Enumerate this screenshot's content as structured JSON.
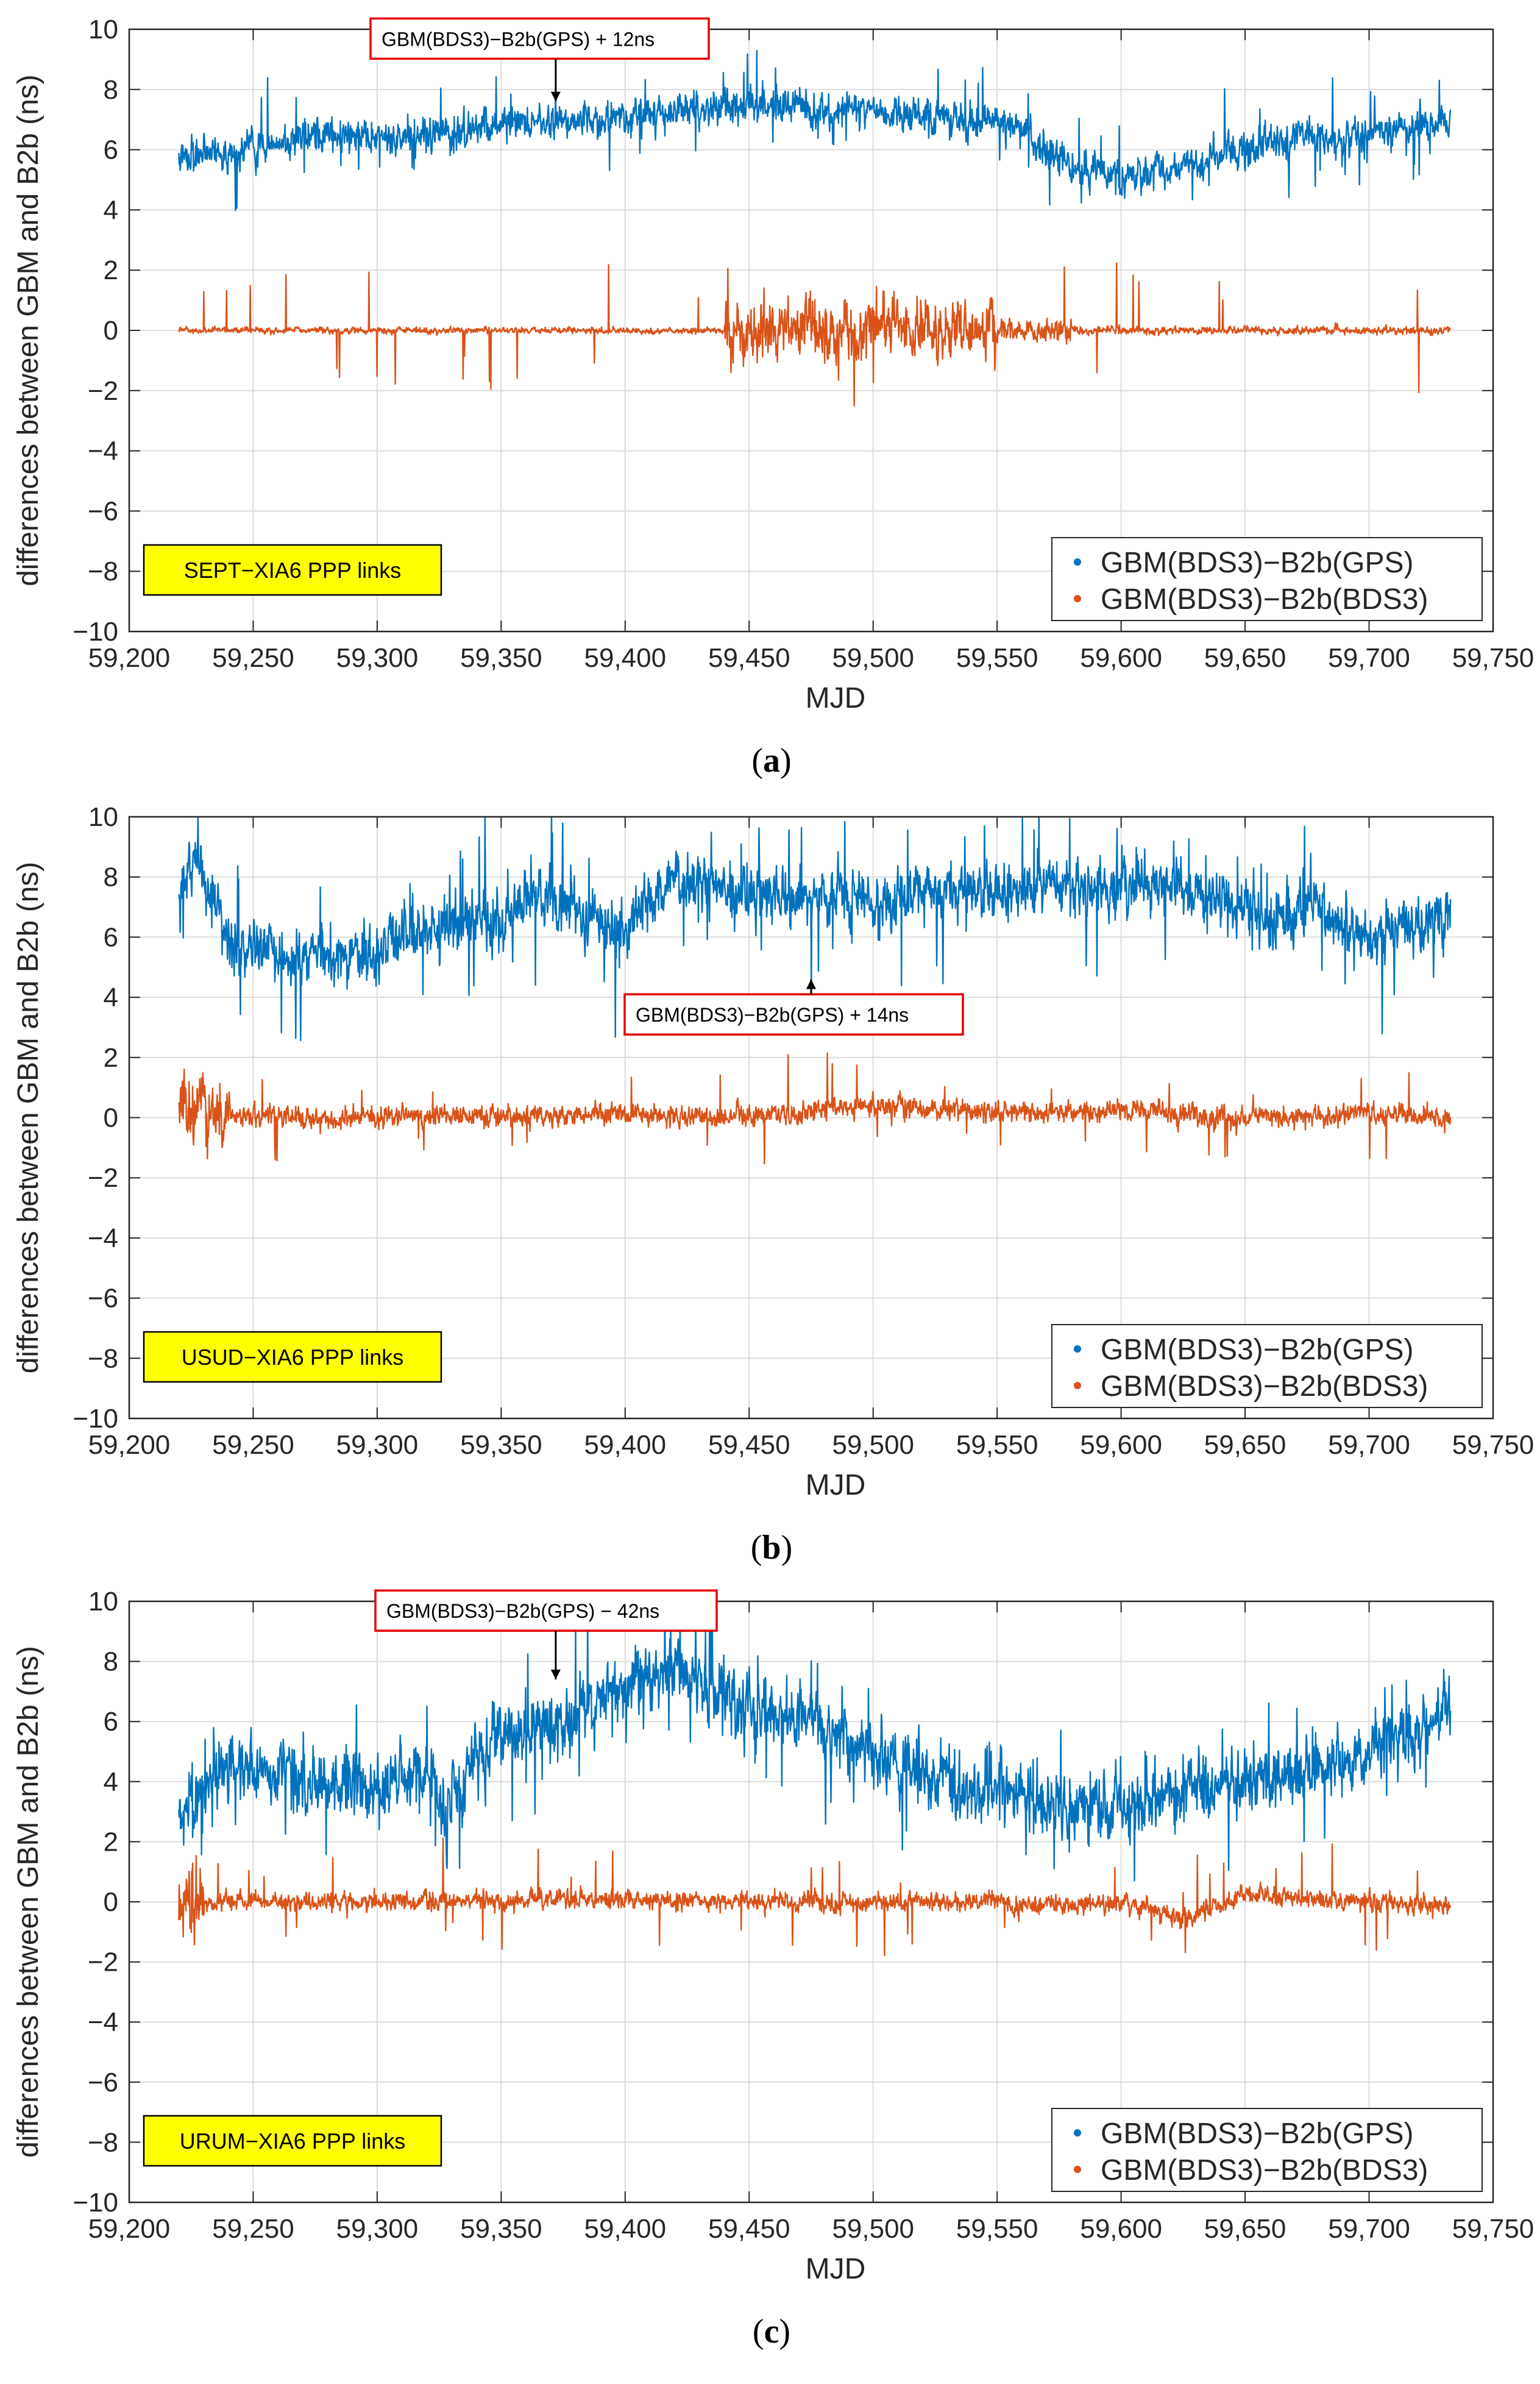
{
  "colors": {
    "series_gps": "#0072BD",
    "series_bds3": "#D95319",
    "badge_fill": "#FFFF00",
    "annotation_border": "#E60000"
  },
  "chart_data": [
    {
      "type": "line",
      "panel": "(a)",
      "caption_letter": "a",
      "badge": "SEPT−XIA6 PPP links",
      "annotation": "GBM(BDS3)−B2b(GPS) + 12ns",
      "annotation_target": {
        "x": 59372,
        "y": 7.6
      },
      "annotation_anchor": {
        "x": 59372,
        "y": 8.9
      },
      "xlabel": "MJD",
      "ylabel": "differences between GBM and B2b (ns)",
      "xlim": [
        59200,
        59750
      ],
      "ylim": [
        -10,
        10
      ],
      "xticks": [
        59200,
        59250,
        59300,
        59350,
        59400,
        59450,
        59500,
        59550,
        59600,
        59650,
        59700,
        59750
      ],
      "xtick_labels": [
        "59,200",
        "59,250",
        "59,300",
        "59,350",
        "59,400",
        "59,450",
        "59,500",
        "59,550",
        "59,600",
        "59,650",
        "59,700",
        "59,750"
      ],
      "yticks": [
        -10,
        -8,
        -6,
        -4,
        -2,
        0,
        2,
        4,
        6,
        8,
        10
      ],
      "ytick_labels": [
        "−10",
        "−8",
        "−6",
        "−4",
        "−2",
        "0",
        "2",
        "4",
        "6",
        "8",
        "10"
      ],
      "legend": [
        "GBM(BDS3)−B2b(GPS)",
        "GBM(BDS3)−B2b(BDS3)"
      ],
      "legend_location": "bottom-right",
      "grid": true,
      "series": [
        {
          "name": "GBM(BDS3)−B2b(GPS)",
          "x": [
            59220,
            59235,
            59250,
            59275,
            59300,
            59325,
            59350,
            59375,
            59400,
            59420,
            59440,
            59460,
            59480,
            59500,
            59520,
            59540,
            59550,
            59565,
            59580,
            59600,
            59615,
            59630,
            59650,
            59670,
            59690,
            59710,
            59733
          ],
          "y": [
            5.9,
            5.8,
            6.1,
            6.6,
            6.4,
            6.6,
            6.8,
            7.0,
            7.1,
            7.3,
            7.4,
            7.5,
            7.4,
            7.3,
            7.1,
            6.9,
            7.0,
            6.2,
            5.5,
            5.0,
            5.2,
            5.5,
            6.0,
            6.5,
            6.4,
            6.7,
            6.9
          ],
          "noise": 0.45,
          "spike_prob": 0.02,
          "spike_mag": 1.2
        },
        {
          "name": "GBM(BDS3)−B2b(BDS3)",
          "x": [
            59220,
            59300,
            59400,
            59440,
            59460,
            59480,
            59500,
            59520,
            59545,
            59560,
            59600,
            59650,
            59733
          ],
          "y": [
            0.0,
            0.0,
            0.0,
            0.0,
            0.1,
            0.0,
            0.1,
            0.0,
            0.0,
            0.0,
            0.0,
            0.0,
            0.0
          ],
          "noise_regions": [
            [
              59220,
              59440,
              0.08
            ],
            [
              59440,
              59550,
              0.8
            ],
            [
              59550,
              59580,
              0.3
            ],
            [
              59580,
              59733,
              0.1
            ]
          ],
          "spike_prob": 0.01,
          "spike_mag": 1.5
        }
      ]
    },
    {
      "type": "line",
      "panel": "(b)",
      "caption_letter": "b",
      "badge": "USUD−XIA6 PPP links",
      "annotation": "GBM(BDS3)−B2b(GPS) + 14ns",
      "annotation_target": {
        "x": 59475,
        "y": 4.6
      },
      "annotation_anchor": {
        "x": 59475,
        "y": 3.6
      },
      "xlabel": "MJD",
      "ylabel": "differences between GBM and B2b (ns)",
      "xlim": [
        59200,
        59750
      ],
      "ylim": [
        -10,
        10
      ],
      "xticks": [
        59200,
        59250,
        59300,
        59350,
        59400,
        59450,
        59500,
        59550,
        59600,
        59650,
        59700,
        59750
      ],
      "xtick_labels": [
        "59,200",
        "59,250",
        "59,300",
        "59,350",
        "59,400",
        "59,450",
        "59,500",
        "59,550",
        "59,600",
        "59,650",
        "59,700",
        "59,750"
      ],
      "yticks": [
        -10,
        -8,
        -6,
        -4,
        -2,
        0,
        2,
        4,
        6,
        8,
        10
      ],
      "ytick_labels": [
        "−10",
        "−8",
        "−6",
        "−4",
        "−2",
        "0",
        "2",
        "4",
        "6",
        "8",
        "10"
      ],
      "legend": [
        "GBM(BDS3)−B2b(GPS)",
        "GBM(BDS3)−B2b(BDS3)"
      ],
      "legend_location": "bottom-right",
      "grid": true,
      "series": [
        {
          "name": "GBM(BDS3)−B2b(GPS)",
          "x": [
            59220,
            59228,
            59240,
            59260,
            59280,
            59300,
            59320,
            59340,
            59350,
            59360,
            59380,
            59400,
            59420,
            59440,
            59460,
            59480,
            59500,
            59520,
            59540,
            59560,
            59580,
            59600,
            59620,
            59640,
            59660,
            59680,
            59700,
            59720,
            59733
          ],
          "y": [
            7.5,
            8.5,
            6.0,
            5.5,
            5.3,
            5.6,
            6.2,
            6.6,
            6.3,
            7.6,
            7.0,
            6.3,
            8.0,
            7.5,
            7.3,
            7.5,
            7.2,
            7.4,
            7.6,
            7.4,
            7.7,
            7.6,
            7.8,
            7.2,
            6.5,
            6.9,
            6.0,
            6.3,
            6.8
          ],
          "noise": 0.75,
          "spike_prob": 0.03,
          "spike_mag": 2.0
        },
        {
          "name": "GBM(BDS3)−B2b(BDS3)",
          "x": [
            59220,
            59235,
            59250,
            59300,
            59400,
            59450,
            59500,
            59550,
            59600,
            59650,
            59700,
            59733
          ],
          "y": [
            0.6,
            0.3,
            0.0,
            0.0,
            0.1,
            0.0,
            0.4,
            0.2,
            0.2,
            0.0,
            0.1,
            0.0
          ],
          "noise_regions": [
            [
              59220,
              59240,
              0.9
            ],
            [
              59240,
              59733,
              0.28
            ]
          ],
          "spike_prob": 0.02,
          "spike_mag": 1.0
        }
      ]
    },
    {
      "type": "line",
      "panel": "(c)",
      "caption_letter": "c",
      "badge": "URUM−XIA6 PPP links",
      "annotation": "GBM(BDS3)−B2b(GPS) − 42ns",
      "annotation_target": {
        "x": 59372,
        "y": 7.4
      },
      "annotation_anchor": {
        "x": 59372,
        "y": 8.9
      },
      "xlabel": "MJD",
      "ylabel": "differences between GBM and B2b (ns)",
      "xlim": [
        59200,
        59750
      ],
      "ylim": [
        -10,
        10
      ],
      "xticks": [
        59200,
        59250,
        59300,
        59350,
        59400,
        59450,
        59500,
        59550,
        59600,
        59650,
        59700,
        59750
      ],
      "xtick_labels": [
        "59,200",
        "59,250",
        "59,300",
        "59,350",
        "59,400",
        "59,450",
        "59,500",
        "59,550",
        "59,600",
        "59,650",
        "59,700",
        "59,750"
      ],
      "yticks": [
        -10,
        -8,
        -6,
        -4,
        -2,
        0,
        2,
        4,
        6,
        8,
        10
      ],
      "ytick_labels": [
        "−10",
        "−8",
        "−6",
        "−4",
        "−2",
        "0",
        "2",
        "4",
        "6",
        "8",
        "10"
      ],
      "legend": [
        "GBM(BDS3)−B2b(GPS)",
        "GBM(BDS3)−B2b(BDS3)"
      ],
      "legend_location": "bottom-right",
      "grid": true,
      "series": [
        {
          "name": "GBM(BDS3)−B2b(GPS)",
          "x": [
            59220,
            59240,
            59260,
            59280,
            59300,
            59320,
            59330,
            59340,
            59360,
            59380,
            59400,
            59415,
            59430,
            59450,
            59470,
            59490,
            59510,
            59530,
            59550,
            59570,
            59590,
            59610,
            59630,
            59650,
            59670,
            59690,
            59710,
            59733
          ],
          "y": [
            3.2,
            4.5,
            4.2,
            4.0,
            3.8,
            4.5,
            3.2,
            5.0,
            5.8,
            6.3,
            7.2,
            7.8,
            7.4,
            6.5,
            6.2,
            5.5,
            4.6,
            4.0,
            3.8,
            3.4,
            3.1,
            3.3,
            3.6,
            3.9,
            4.2,
            4.6,
            5.4,
            6.3
          ],
          "noise": 0.85,
          "spike_prob": 0.03,
          "spike_mag": 1.8
        },
        {
          "name": "GBM(BDS3)−B2b(BDS3)",
          "x": [
            59220,
            59300,
            59400,
            59450,
            59500,
            59550,
            59560,
            59600,
            59625,
            59650,
            59700,
            59733
          ],
          "y": [
            0.0,
            0.0,
            0.1,
            0.0,
            0.0,
            0.0,
            -0.2,
            0.0,
            -0.6,
            0.2,
            0.0,
            -0.1
          ],
          "noise_regions": [
            [
              59220,
              59230,
              0.9
            ],
            [
              59230,
              59733,
              0.25
            ]
          ],
          "spike_prob": 0.02,
          "spike_mag": 1.2
        }
      ]
    }
  ]
}
